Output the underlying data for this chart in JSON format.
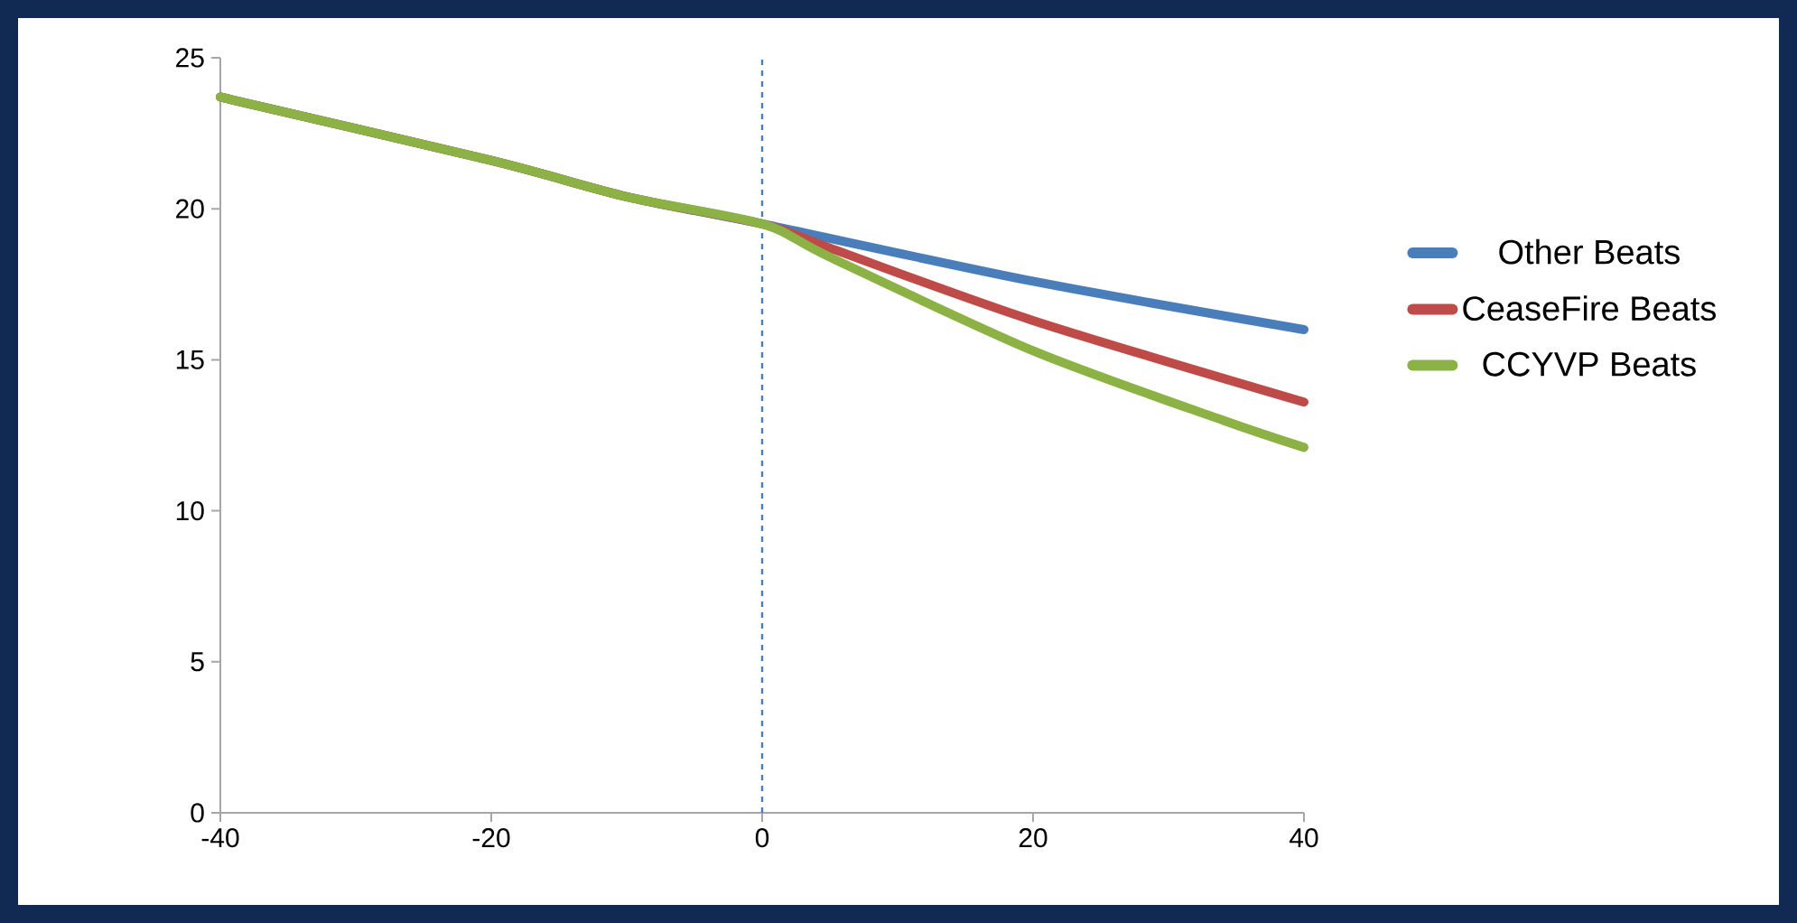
{
  "chart_data": {
    "type": "line",
    "xlim": [
      -40,
      40
    ],
    "xticks": [
      -40,
      -20,
      0,
      20,
      40
    ],
    "ylim": [
      0,
      25
    ],
    "yticks": [
      0,
      5,
      10,
      15,
      20,
      25
    ],
    "grid": false,
    "legend": "right",
    "marker": "none",
    "line_style": "solid",
    "series": [
      {
        "name": "Other Beats",
        "color": "#4a7ebb",
        "x": [
          -40,
          -20,
          -10,
          0,
          20,
          40
        ],
        "values": [
          23.7,
          21.6,
          20.4,
          19.5,
          17.6,
          16.0
        ]
      },
      {
        "name": "CeaseFire Beats",
        "color": "#be4b48",
        "x": [
          -40,
          -20,
          -10,
          0,
          5,
          20,
          40
        ],
        "values": [
          23.7,
          21.6,
          20.4,
          19.5,
          18.7,
          16.3,
          13.6
        ]
      },
      {
        "name": "CCYVP Beats",
        "color": "#8cb245",
        "x": [
          -40,
          -20,
          -10,
          0,
          5,
          20,
          34,
          40
        ],
        "values": [
          23.7,
          21.6,
          20.4,
          19.5,
          18.4,
          15.3,
          13.0,
          12.1
        ]
      }
    ],
    "ref_lines": [
      {
        "axis": "x",
        "value": 0,
        "color": "#4a7ebb",
        "line_style": "dashed"
      }
    ]
  }
}
